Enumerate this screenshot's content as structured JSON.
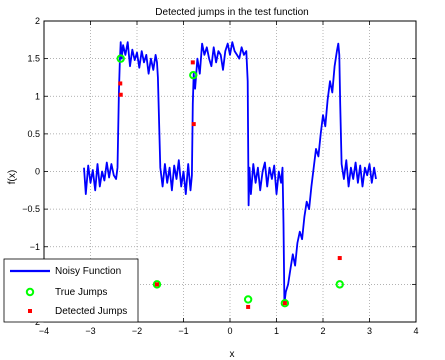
{
  "chart_data": {
    "type": "line",
    "title": "Detected jumps in the test function",
    "xlabel": "x",
    "ylabel": "f(x)",
    "xlim": [
      -4,
      4
    ],
    "ylim": [
      -2,
      2
    ],
    "xticks": [
      -4,
      -3,
      -2,
      -1,
      0,
      1,
      2,
      3,
      4
    ],
    "xtick_labels": [
      "−4",
      "−3",
      "−2",
      "−1",
      "0",
      "1",
      "2",
      "3",
      "4"
    ],
    "yticks": [
      -2,
      -1.5,
      -1,
      -0.5,
      0,
      0.5,
      1,
      1.5,
      2
    ],
    "ytick_labels": [
      "−2",
      "−1.5",
      "−1",
      "−0.5",
      "0",
      "0.5",
      "1",
      "1.5",
      "2"
    ],
    "grid": true,
    "legend_position": "bottom-left",
    "colors": {
      "noisy": "#0000ff",
      "true_jumps": "#00ff00",
      "detected_jumps": "#ff0000"
    },
    "series": [
      {
        "name": "Noisy Function",
        "kind": "line",
        "x": [
          -3.14,
          -3.1,
          -3.05,
          -3.0,
          -2.95,
          -2.9,
          -2.85,
          -2.8,
          -2.75,
          -2.7,
          -2.65,
          -2.6,
          -2.55,
          -2.5,
          -2.45,
          -2.42,
          -2.39,
          -2.37,
          -2.35,
          -2.33,
          -2.3,
          -2.25,
          -2.2,
          -2.15,
          -2.1,
          -2.05,
          -2.0,
          -1.95,
          -1.9,
          -1.85,
          -1.8,
          -1.75,
          -1.7,
          -1.65,
          -1.6,
          -1.57,
          -1.55,
          -1.5,
          -1.45,
          -1.4,
          -1.35,
          -1.3,
          -1.25,
          -1.2,
          -1.15,
          -1.1,
          -1.05,
          -1.0,
          -0.95,
          -0.9,
          -0.85,
          -0.82,
          -0.8,
          -0.78,
          -0.75,
          -0.7,
          -0.65,
          -0.6,
          -0.55,
          -0.5,
          -0.45,
          -0.4,
          -0.35,
          -0.3,
          -0.25,
          -0.2,
          -0.15,
          -0.1,
          -0.05,
          0.0,
          0.05,
          0.1,
          0.15,
          0.2,
          0.25,
          0.3,
          0.35,
          0.38,
          0.4,
          0.42,
          0.45,
          0.5,
          0.55,
          0.6,
          0.65,
          0.7,
          0.75,
          0.8,
          0.85,
          0.9,
          0.95,
          1.0,
          1.05,
          1.1,
          1.13,
          1.15,
          1.17,
          1.2,
          1.25,
          1.3,
          1.35,
          1.4,
          1.45,
          1.5,
          1.55,
          1.6,
          1.65,
          1.7,
          1.75,
          1.8,
          1.85,
          1.9,
          1.95,
          2.0,
          2.05,
          2.1,
          2.15,
          2.2,
          2.25,
          2.3,
          2.33,
          2.35,
          2.37,
          2.4,
          2.45,
          2.5,
          2.55,
          2.6,
          2.65,
          2.7,
          2.75,
          2.8,
          2.85,
          2.9,
          2.95,
          3.0,
          3.05,
          3.1,
          3.14
        ],
        "y": [
          0.05,
          -0.3,
          0.08,
          -0.15,
          0.02,
          -0.25,
          0.1,
          -0.2,
          0.0,
          -0.12,
          0.12,
          -0.08,
          0.1,
          -0.05,
          -0.1,
          0.05,
          1.05,
          1.45,
          1.72,
          1.5,
          1.68,
          1.55,
          1.72,
          1.4,
          1.62,
          1.48,
          1.58,
          1.38,
          1.6,
          1.45,
          1.55,
          1.3,
          1.5,
          1.35,
          1.55,
          1.45,
          1.25,
          0.05,
          -0.2,
          0.1,
          -0.15,
          0.05,
          -0.25,
          0.08,
          -0.1,
          0.15,
          -0.2,
          0.0,
          -0.3,
          0.1,
          -0.25,
          -0.05,
          0.9,
          1.3,
          1.1,
          1.5,
          1.3,
          1.7,
          1.55,
          1.65,
          1.5,
          1.4,
          1.65,
          1.45,
          1.6,
          1.55,
          1.35,
          1.6,
          1.7,
          1.55,
          1.72,
          1.6,
          1.55,
          1.5,
          1.65,
          1.55,
          1.6,
          1.2,
          -0.45,
          0.05,
          -0.3,
          0.1,
          -0.15,
          0.05,
          -0.25,
          0.0,
          0.12,
          -0.2,
          0.05,
          -0.1,
          0.08,
          -0.3,
          0.0,
          -0.15,
          0.05,
          -0.7,
          -1.75,
          -1.6,
          -1.5,
          -1.3,
          -1.1,
          -1.25,
          -0.95,
          -0.8,
          -0.9,
          -0.6,
          -0.4,
          -0.5,
          -0.2,
          0.05,
          0.3,
          0.2,
          0.5,
          0.75,
          0.6,
          0.95,
          1.2,
          1.05,
          1.4,
          1.6,
          1.7,
          1.55,
          0.9,
          0.1,
          -0.1,
          0.15,
          -0.2,
          0.05,
          -0.1,
          0.12,
          -0.15,
          0.08,
          -0.2,
          0.05,
          -0.05,
          0.1,
          -0.15,
          0.05,
          -0.1
        ]
      },
      {
        "name": "True Jumps",
        "kind": "marker",
        "marker": "circle",
        "x": [
          -2.35,
          -1.57,
          -0.79,
          0.39,
          1.18,
          2.36
        ],
        "y": [
          1.5,
          -1.5,
          1.28,
          -1.7,
          -1.75,
          -1.5
        ]
      },
      {
        "name": "Detected Jumps",
        "kind": "marker",
        "marker": "square",
        "x": [
          -2.36,
          -2.35,
          -1.57,
          -0.8,
          -0.78,
          0.39,
          1.18,
          2.36
        ],
        "y": [
          1.17,
          1.02,
          -1.5,
          1.45,
          0.63,
          -1.8,
          -1.75,
          -1.15
        ]
      }
    ]
  }
}
